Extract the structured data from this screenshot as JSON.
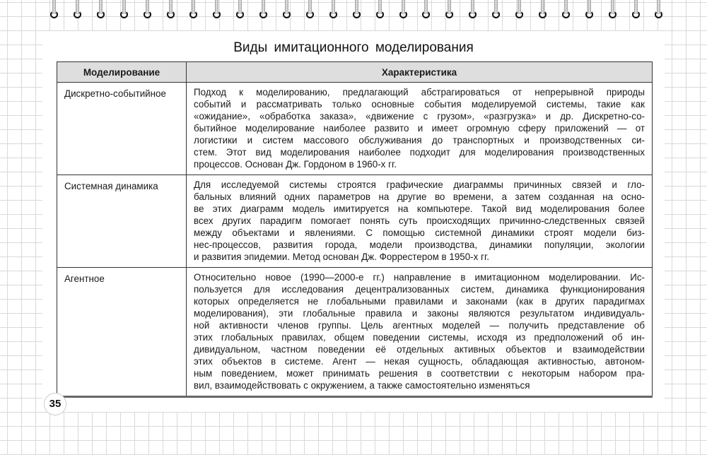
{
  "title": "Виды имитационного моделирования",
  "table": {
    "headers": [
      "Моделирование",
      "Характеристика"
    ],
    "rows": [
      {
        "name": "Дискретно-событийное",
        "lines": [
          "Подход к моделированию, предлагающий абстрагироваться от непрерывной природы",
          "событий и рассматривать только основные события моделируемой системы, такие как",
          "«ожидание», «обработка заказа», «движение с грузом», «разгрузка» и др. Дискретно-со-",
          "бытийное моделирование наиболее развито и имеет огромную сферу приложений — от",
          "логистики и систем массового обслуживания до транспортных и производственных си-",
          "стем. Этот вид моделирования наиболее подходит для моделирования производственных",
          "процессов. Основан Дж. Гордоном в 1960-х гг."
        ]
      },
      {
        "name": "Системная динамика",
        "lines": [
          "Для исследуемой системы строятся графические диаграммы причинных связей и гло-",
          "бальных влияний одних параметров на другие во времени, а затем созданная на осно-",
          "ве этих диаграмм модель имитируется на компьютере. Такой вид моделирования более",
          "всех других парадигм помогает понять суть происходящих причинно-следственных связей",
          "между объектами и явлениями. С помощью системной динамики строят модели биз-",
          "нес-процессов, развития города, модели производства, динамики популяции, экологии",
          "и развития эпидемии. Метод основан Дж. Форрестером в 1950-х гг."
        ]
      },
      {
        "name": "Агентное",
        "lines": [
          "Относительно новое (1990—2000-е гг.) направление в имитационном моделировании. Ис-",
          "пользуется для исследования децентрализованных систем, динамика функционирования",
          "которых определяется не глобальными правилами и законами (как в других парадигмах",
          "моделирования), эти глобальные правила и законы являются результатом индивидуаль-",
          "ной активности членов группы. Цель агентных моделей — получить представление об",
          "этих глобальных правилах, общем поведении системы, исходя из предположений об ин-",
          "дивидуальном, частном поведении её отдельных активных объектов и взаимодействии",
          "этих объектов в системе. Агент — некая сущность, обладающая активностью, автоном-",
          "ным поведением, может принимать решения в соответствии с некоторым набором пра-",
          "вил, взаимодействовать с окружением, а также самостоятельно изменяться"
        ]
      }
    ]
  },
  "page_number": "35"
}
